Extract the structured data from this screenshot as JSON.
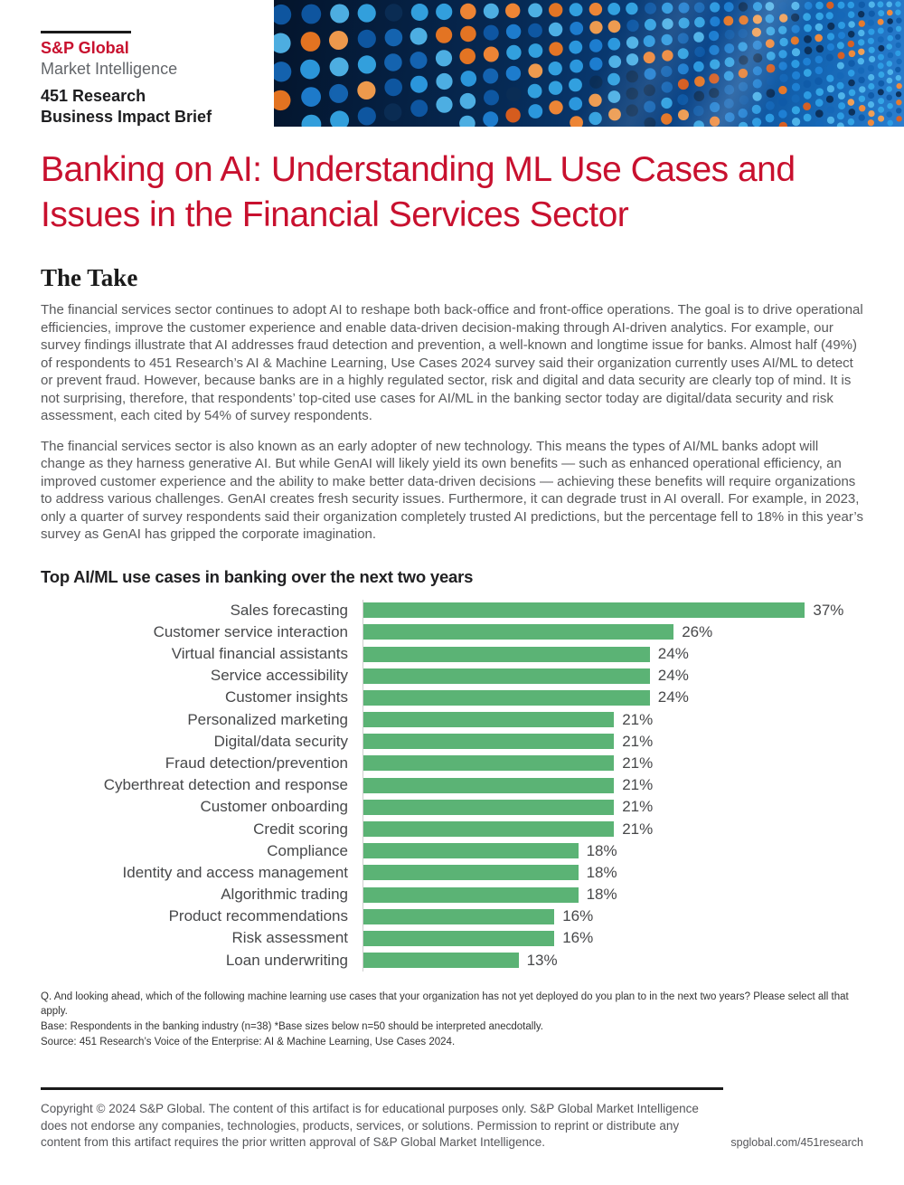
{
  "colors": {
    "brand_red": "#C8102E",
    "bar_green": "#5BB375"
  },
  "brand": {
    "logo_line1": "S&P Global",
    "logo_line2": "Market Intelligence",
    "logo_line3": "451 Research",
    "logo_line4": "Business Impact Brief"
  },
  "header_image": "led-dot-wall-photo",
  "title": "Banking on AI: Understanding ML Use Cases and Issues in the Financial Services Sector",
  "sections": {
    "the_take": {
      "heading": "The Take",
      "paragraphs": [
        "The financial services sector continues to adopt AI to reshape both back-office and front-office operations. The goal is to drive operational efficiencies, improve the customer experience and enable data-driven decision-making through AI-driven analytics. For example, our survey findings illustrate that AI addresses fraud detection and prevention, a well-known and longtime issue for banks. Almost half (49%) of respondents to 451 Research’s AI & Machine Learning, Use Cases 2024 survey said their organization currently uses AI/ML to detect or prevent fraud. However, because banks are in a highly regulated sector, risk and digital and data security are clearly top of mind. It is not surprising, therefore, that respondents’ top-cited use cases for AI/ML in the banking sector today are digital/data security and risk assessment, each cited by 54% of survey respondents.",
        "The financial services sector is also known as an early adopter of new technology. This means the types of AI/ML banks adopt will change as they harness generative AI. But while GenAI will likely yield its own benefits — such as enhanced operational efficiency, an improved customer experience and the ability to make better data-driven decisions — achieving these benefits will require organizations to address various challenges. GenAI creates fresh security issues. Furthermore, it can degrade trust in AI overall. For example, in 2023, only a quarter of survey respondents said their organization completely trusted AI predictions, but the percentage fell to 18% in this year’s survey as GenAI has gripped the corporate imagination."
      ]
    }
  },
  "chart_data": {
    "type": "bar",
    "orientation": "horizontal",
    "title": "Top AI/ML use cases in banking over the next two years",
    "categories": [
      "Sales forecasting",
      "Customer service interaction",
      "Virtual financial assistants",
      "Service accessibility",
      "Customer insights",
      "Personalized marketing",
      "Digital/data security",
      "Fraud detection/prevention",
      "Cyberthreat detection and response",
      "Customer onboarding",
      "Credit scoring",
      "Compliance",
      "Identity and access management",
      "Algorithmic trading",
      "Product recommendations",
      "Risk assessment",
      "Loan underwriting"
    ],
    "values": [
      37,
      26,
      24,
      24,
      24,
      21,
      21,
      21,
      21,
      21,
      21,
      18,
      18,
      18,
      16,
      16,
      13
    ],
    "unit": "%",
    "xlim": [
      0,
      40
    ],
    "grid": false,
    "legend": "none",
    "value_labels": true,
    "bar_color": "#5BB375"
  },
  "footnotes": [
    "Q. And looking ahead, which of the following machine learning use cases that your organization has not yet deployed do you plan to in the next two years? Please select all that apply.",
    "Base: Respondents in the banking industry (n=38) *Base sizes below n=50 should be interpreted anecdotally.",
    "Source: 451 Research’s Voice of the Enterprise: AI & Machine Learning, Use Cases 2024."
  ],
  "footer": {
    "copyright": "Copyright © 2024 S&P Global. The content of this artifact is for educational purposes only. S&P Global Market Intelligence does not endorse any companies, technologies, products, services, or solutions. Permission to reprint or distribute any content from this artifact requires the prior written approval of S&P Global Market Intelligence.",
    "link": "spglobal.com/451research"
  }
}
